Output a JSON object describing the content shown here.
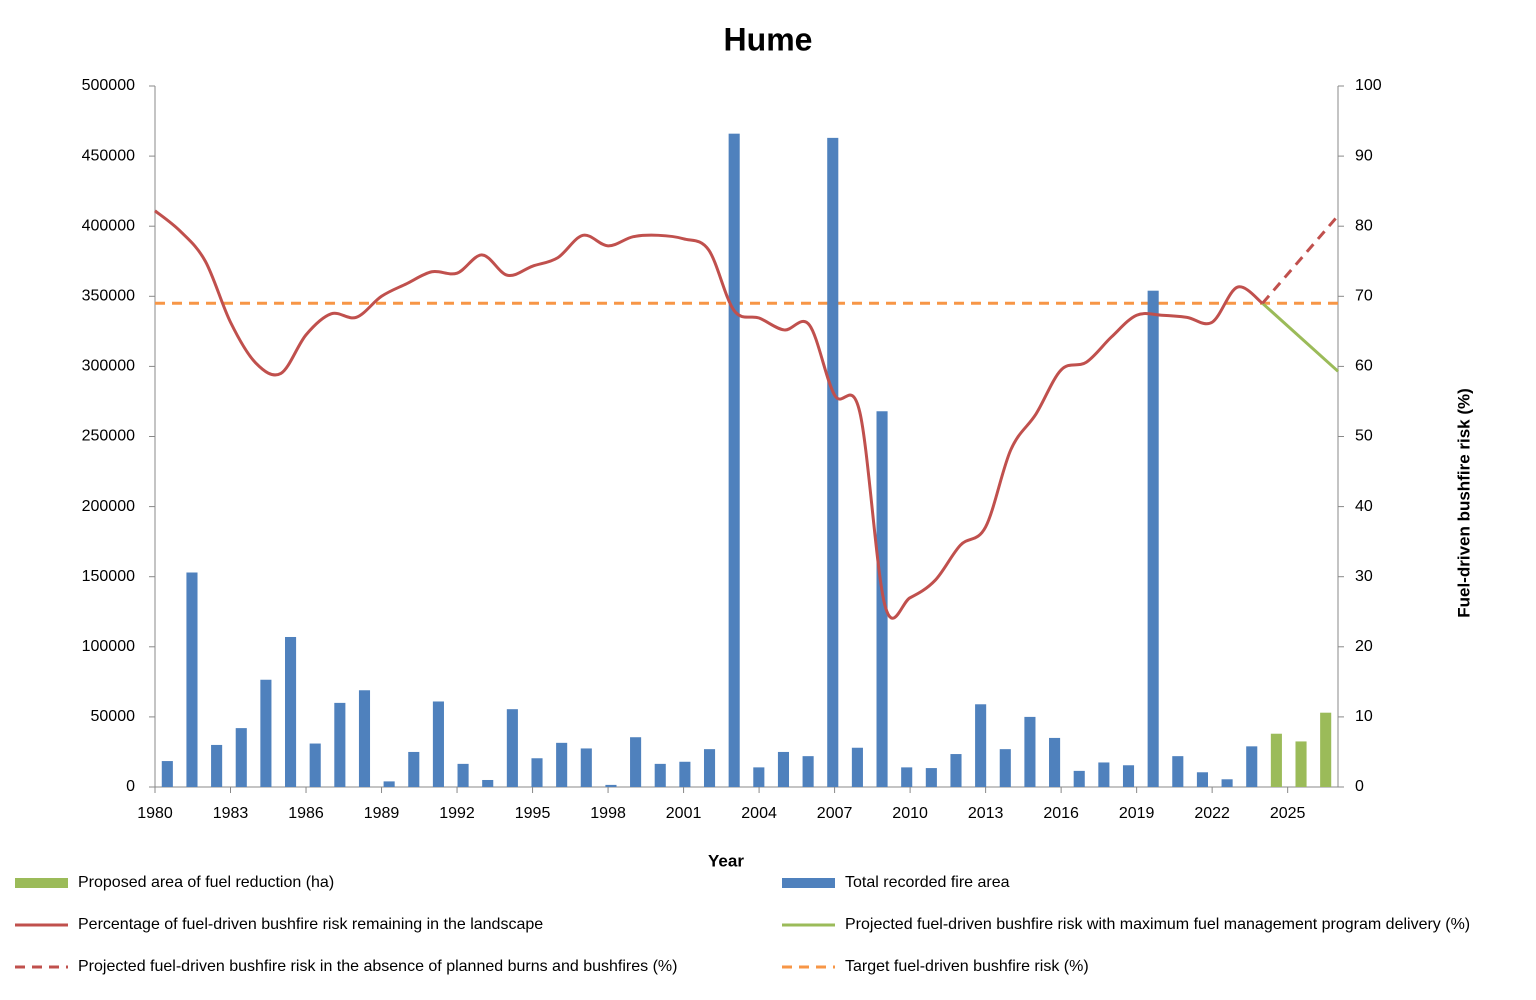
{
  "chart_data": {
    "type": "combo",
    "title": "Hume",
    "x_label": "Year",
    "y2_label": "Fuel-driven bushfire risk (%)",
    "xlim": [
      1980,
      2027
    ],
    "xticks": [
      1980,
      1983,
      1986,
      1989,
      1992,
      1995,
      1998,
      2001,
      2004,
      2007,
      2010,
      2013,
      2016,
      2019,
      2022,
      2025
    ],
    "ylim": [
      0,
      500000
    ],
    "yticks": [
      0,
      50000,
      100000,
      150000,
      200000,
      250000,
      300000,
      350000,
      400000,
      450000,
      500000
    ],
    "y2lim": [
      0,
      100
    ],
    "y2ticks": [
      0,
      10,
      20,
      30,
      40,
      50,
      60,
      70,
      80,
      90,
      100
    ],
    "grid": false,
    "legend": "bottom",
    "series": [
      {
        "name": "Proposed area of fuel reduction (ha)",
        "type": "bar",
        "color": "#9bbb59",
        "x": [
          2025,
          2026,
          2027
        ],
        "values": [
          38000,
          32500,
          53000
        ]
      },
      {
        "name": "Total recorded fire area",
        "type": "bar",
        "color": "#4f81bd",
        "x": [
          1980,
          1981,
          1982,
          1983,
          1984,
          1985,
          1986,
          1987,
          1988,
          1989,
          1990,
          1991,
          1992,
          1993,
          1994,
          1995,
          1996,
          1997,
          1998,
          1999,
          2000,
          2001,
          2002,
          2003,
          2004,
          2005,
          2006,
          2007,
          2008,
          2009,
          2010,
          2011,
          2012,
          2013,
          2014,
          2015,
          2016,
          2017,
          2018,
          2019,
          2020,
          2021,
          2022,
          2023,
          2024
        ],
        "values": [
          18500,
          153000,
          30000,
          42000,
          76500,
          107000,
          31000,
          60000,
          69000,
          4000,
          25000,
          61000,
          16500,
          5000,
          55500,
          20500,
          31500,
          27500,
          1500,
          35500,
          16500,
          18000,
          27000,
          466000,
          14000,
          25000,
          22000,
          463000,
          28000,
          268000,
          14000,
          13500,
          23500,
          59000,
          27000,
          50000,
          35000,
          11500,
          17500,
          15500,
          354000,
          22000,
          10500,
          5500,
          29000
        ]
      },
      {
        "name": "Percentage of fuel-driven bushfire risk remaining in the landscape",
        "type": "line",
        "axis": "y2",
        "color": "#c0504d",
        "dashed": false,
        "x": [
          1980,
          1981,
          1982,
          1983,
          1984,
          1985,
          1986,
          1987,
          1988,
          1989,
          1990,
          1991,
          1992,
          1993,
          1994,
          1995,
          1996,
          1997,
          1998,
          1999,
          2000,
          2001,
          2002,
          2003,
          2004,
          2005,
          2006,
          2007,
          2008,
          2009,
          2010,
          2011,
          2012,
          2013,
          2014,
          2015,
          2016,
          2017,
          2018,
          2019,
          2020,
          2021,
          2022,
          2023,
          2024
        ],
        "values": [
          82.2,
          79.3,
          75,
          66.3,
          60.5,
          59,
          64.5,
          67.5,
          67,
          70,
          71.8,
          73.5,
          73.3,
          75.9,
          73,
          74.3,
          75.5,
          78.7,
          77.2,
          78.5,
          78.7,
          78.2,
          76.6,
          68,
          66.9,
          65.2,
          65.9,
          55.9,
          53.5,
          25.9,
          27,
          29.5,
          34.5,
          37.1,
          48.1,
          53.2,
          59.5,
          60.6,
          64.2,
          67.3,
          67.3,
          67,
          66.3,
          71.3,
          69
        ]
      },
      {
        "name": "Projected fuel-driven bushfire risk with maximum fuel management program delivery  (%)",
        "type": "line",
        "axis": "y2",
        "color": "#9bbb59",
        "dashed": false,
        "x": [
          2024,
          2027
        ],
        "values": [
          69,
          59.3
        ]
      },
      {
        "name": "Projected fuel-driven bushfire risk in the absence of planned burns and bushfires (%)",
        "type": "line",
        "axis": "y2",
        "color": "#c0504d",
        "dashed": true,
        "x": [
          2024,
          2027
        ],
        "values": [
          69,
          81.5
        ]
      },
      {
        "name": "Target fuel-driven bushfire risk (%)",
        "type": "line",
        "axis": "y2",
        "color": "#f79646",
        "dashed": true,
        "x": [
          1980,
          2027
        ],
        "values": [
          69,
          69
        ]
      }
    ]
  }
}
